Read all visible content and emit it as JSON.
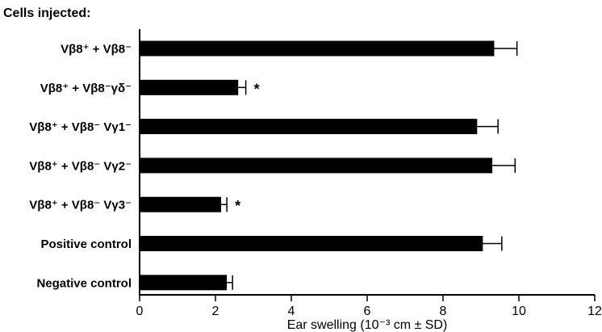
{
  "chart_data": {
    "type": "bar",
    "orientation": "horizontal",
    "corner_label": "Cells injected:",
    "xlabel": "Ear swelling (10⁻³ cm ± SD)",
    "ylabel": "",
    "xlim": [
      0,
      12
    ],
    "xticks": [
      0,
      2,
      4,
      6,
      8,
      10,
      12
    ],
    "grid": false,
    "legend": "none",
    "bar_color": "#000000",
    "categories": [
      "Vβ8⁺ + Vβ8⁻",
      "Vβ8⁺ + Vβ8⁻γδ⁻",
      "Vβ8⁺ + Vβ8⁻ Vγ1⁻",
      "Vβ8⁺ + Vβ8⁻ Vγ2⁻",
      "Vβ8⁺ + Vβ8⁻ Vγ3⁻",
      "Positive control",
      "Negative control"
    ],
    "values": [
      9.35,
      2.6,
      8.9,
      9.3,
      2.15,
      9.05,
      2.3
    ],
    "errors": [
      0.6,
      0.2,
      0.55,
      0.6,
      0.15,
      0.5,
      0.15
    ],
    "annotations": [
      "",
      "*",
      "",
      "",
      "*",
      "",
      ""
    ]
  }
}
